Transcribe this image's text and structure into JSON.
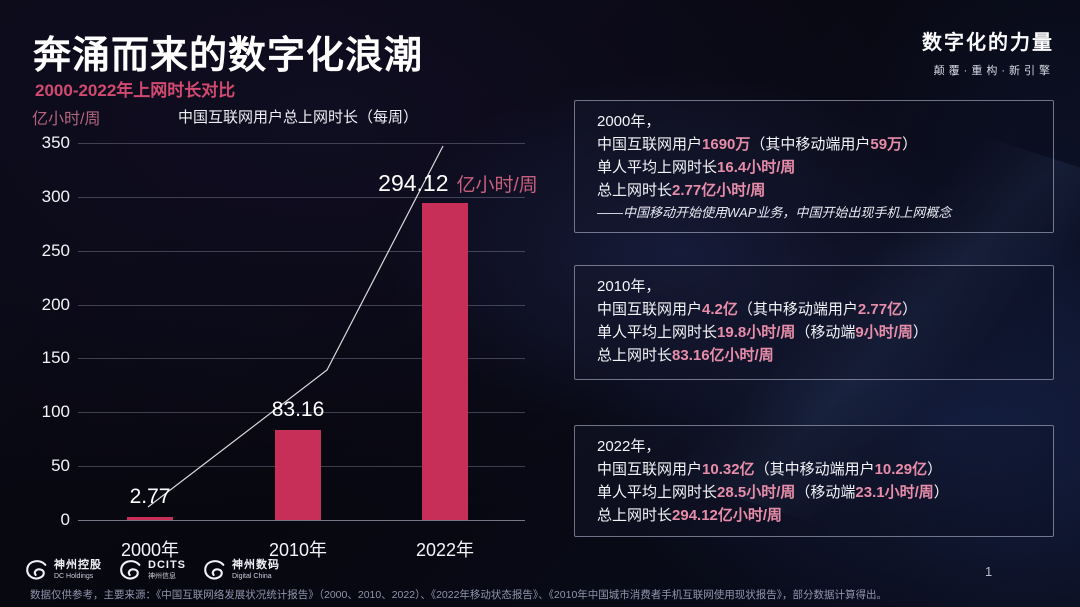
{
  "header": {
    "title": "奔涌而来的数字化浪潮",
    "subtitle": "2000-2022年上网时长对比",
    "brand_title": "数字化的力量",
    "brand_tagline": "颠覆·重构·新引擎"
  },
  "chart_data": {
    "type": "bar",
    "title": "中国互联网用户总上网时长（每周）",
    "ylabel": "亿小时/周",
    "categories": [
      "2000年",
      "2010年",
      "2022年"
    ],
    "values": [
      2.77,
      83.16,
      294.12
    ],
    "value_labels": [
      "2.77",
      "83.16",
      "294.12"
    ],
    "top_value_unit": "亿小时/周",
    "ylim": [
      0,
      350
    ],
    "ytick_step": 50,
    "grid": true,
    "legend": "none",
    "bar_color": "#c72e58",
    "trend_line": true
  },
  "info_boxes": [
    {
      "lines": [
        [
          {
            "t": "2000年，"
          }
        ],
        [
          {
            "t": "中国互联网用户"
          },
          {
            "t": "1690万",
            "h": true
          },
          {
            "t": "（其中移动端用户"
          },
          {
            "t": "59万",
            "h": true
          },
          {
            "t": "）"
          }
        ],
        [
          {
            "t": "单人平均上网时长"
          },
          {
            "t": "16.4小时/周",
            "h": true
          }
        ],
        [
          {
            "t": "总上网时长"
          },
          {
            "t": "2.77亿小时/周",
            "h": true
          }
        ],
        [
          {
            "t": "——中国移动开始使用WAP业务，中国开始出现手机上网概念",
            "i": true
          }
        ]
      ]
    },
    {
      "lines": [
        [
          {
            "t": "2010年，"
          }
        ],
        [
          {
            "t": "中国互联网用户"
          },
          {
            "t": "4.2亿",
            "h": true
          },
          {
            "t": "（其中移动端用户"
          },
          {
            "t": "2.77亿",
            "h": true
          },
          {
            "t": "）"
          }
        ],
        [
          {
            "t": "单人平均上网时长"
          },
          {
            "t": "19.8小时/周",
            "h": true
          },
          {
            "t": "（移动端"
          },
          {
            "t": "9小时/周",
            "h": true
          },
          {
            "t": "）"
          }
        ],
        [
          {
            "t": "总上网时长"
          },
          {
            "t": "83.16亿小时/周",
            "h": true
          }
        ]
      ]
    },
    {
      "lines": [
        [
          {
            "t": "2022年，"
          }
        ],
        [
          {
            "t": "中国互联网用户"
          },
          {
            "t": "10.32亿",
            "h": true
          },
          {
            "t": "（其中移动端用户"
          },
          {
            "t": "10.29亿",
            "h": true
          },
          {
            "t": "）"
          }
        ],
        [
          {
            "t": "单人平均上网时长"
          },
          {
            "t": "28.5小时/周",
            "h": true
          },
          {
            "t": "（移动端"
          },
          {
            "t": "23.1小时/周",
            "h": true
          },
          {
            "t": "）"
          }
        ],
        [
          {
            "t": "总上网时长"
          },
          {
            "t": "294.12亿小时/周",
            "h": true
          }
        ]
      ]
    }
  ],
  "footer": {
    "logos": [
      {
        "name": "神州控股",
        "sub": "DC Holdings"
      },
      {
        "name": "DCITS",
        "sub": "神州信息"
      },
      {
        "name": "神州数码",
        "sub": "Digital China"
      }
    ],
    "source": "数据仅供参考，主要来源：《中国互联网络发展状况统计报告》（2000、2010、2022）、《2022年移动状态报告》、《2010年中国城市消费者手机互联网使用现状报告》，部分数据计算得出。",
    "page_number": "1"
  },
  "colors": {
    "accent_pink": "#d24a70",
    "bar_crimson": "#c72e58",
    "highlight_pink": "#e78da9",
    "axis_unit_mauve": "#b3647f",
    "background": "#07070f"
  }
}
